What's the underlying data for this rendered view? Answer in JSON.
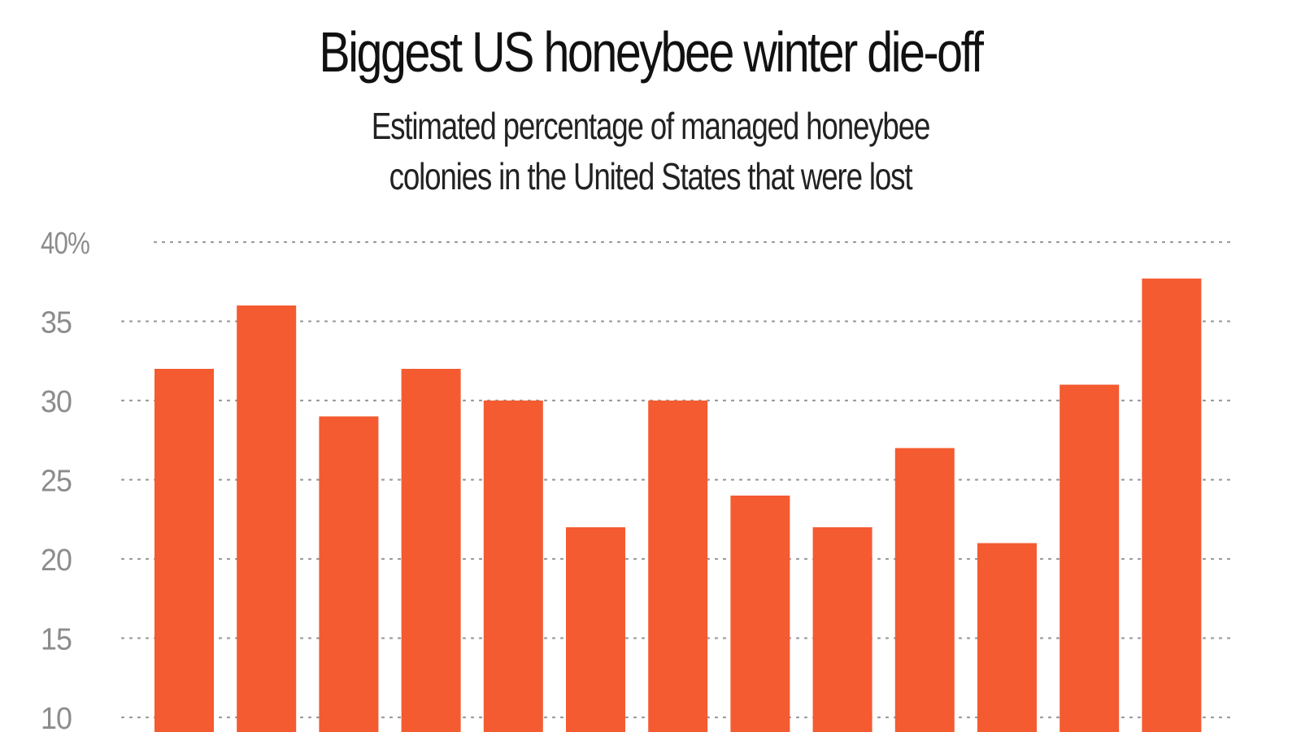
{
  "chart_data": {
    "type": "bar",
    "title": "Biggest US honeybee winter die-off",
    "subtitle_lines": [
      "Estimated percentage of managed honeybee",
      "colonies in the United States that were lost"
    ],
    "xlabel": "",
    "ylabel": "",
    "ylim": [
      10,
      40
    ],
    "yticks": [
      {
        "value": 40,
        "label": "40%"
      },
      {
        "value": 35,
        "label": "35"
      },
      {
        "value": 30,
        "label": "30"
      },
      {
        "value": 25,
        "label": "25"
      },
      {
        "value": 20,
        "label": "20"
      },
      {
        "value": 15,
        "label": "15"
      },
      {
        "value": 10,
        "label": "10"
      }
    ],
    "grid": "dotted horizontal",
    "values": [
      32,
      36,
      29,
      32,
      30,
      22,
      30,
      24,
      22,
      27,
      21,
      31,
      37.7
    ],
    "colors": {
      "bar": "#f45b31",
      "grid": "#9a9a9a",
      "tick_label": "#8c8c8c",
      "title": "#111111"
    }
  }
}
